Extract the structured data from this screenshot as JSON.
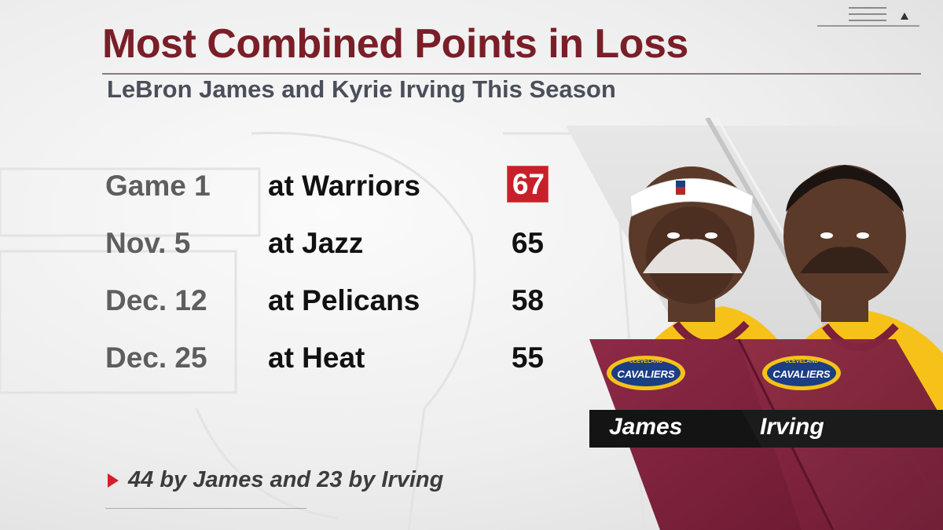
{
  "title": "Most Combined Points in Loss",
  "subtitle": "LeBron James and Kyrie Irving This Season",
  "games": [
    {
      "date": "Game 1",
      "opponent": "at Warriors",
      "points": "67",
      "highlight": true
    },
    {
      "date": "Nov. 5",
      "opponent": "at Jazz",
      "points": "65",
      "highlight": false
    },
    {
      "date": "Dec. 12",
      "opponent": "at Pelicans",
      "points": "58",
      "highlight": false
    },
    {
      "date": "Dec. 25",
      "opponent": "at Heat",
      "points": "55",
      "highlight": false
    }
  ],
  "footnote": "44 by James and 23 by Irving",
  "players": [
    {
      "name": "James",
      "logo_top": "CLEVELAND",
      "logo_main": "CAVALIERS"
    },
    {
      "name": "Irving",
      "logo_top": "CLEVELAND",
      "logo_main": "CAVALIERS"
    }
  ],
  "colors": {
    "title": "#7a1e28",
    "subtitle": "#4a4f5a",
    "highlight": "#c8202a",
    "wine": "#7b1f3a",
    "gold": "#f6c21a"
  },
  "icons": [
    "menu-icon",
    "up-arrow-icon",
    "play-arrow-icon"
  ]
}
